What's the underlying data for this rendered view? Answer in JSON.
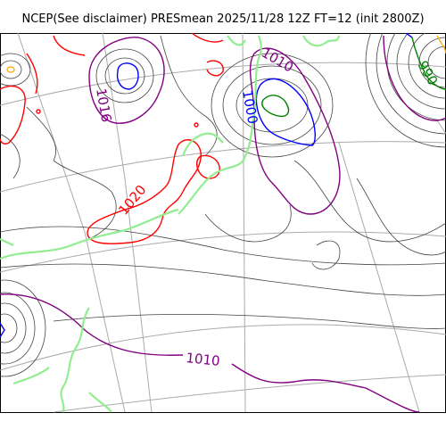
{
  "figure": {
    "title": "NCEP(See disclaimer) PRESmean 2025/11/28 12Z FT=12 (init 2800Z)"
  },
  "contour_labels": {
    "c1010_top": "1010",
    "c1000": "1000",
    "c990": "990",
    "c1016": "1016",
    "c1020": "1020",
    "c1010_bottom": "1010"
  },
  "colors": {
    "isobar_thin": "#444444",
    "isobar_1010": "#800080",
    "isobar_1000": "#0000ff",
    "isobar_990": "#008000",
    "isobar_1020": "#ff0000",
    "coastline": "#90ee90",
    "graticule": "#aaaaaa",
    "high_core": "#ffa500"
  }
}
